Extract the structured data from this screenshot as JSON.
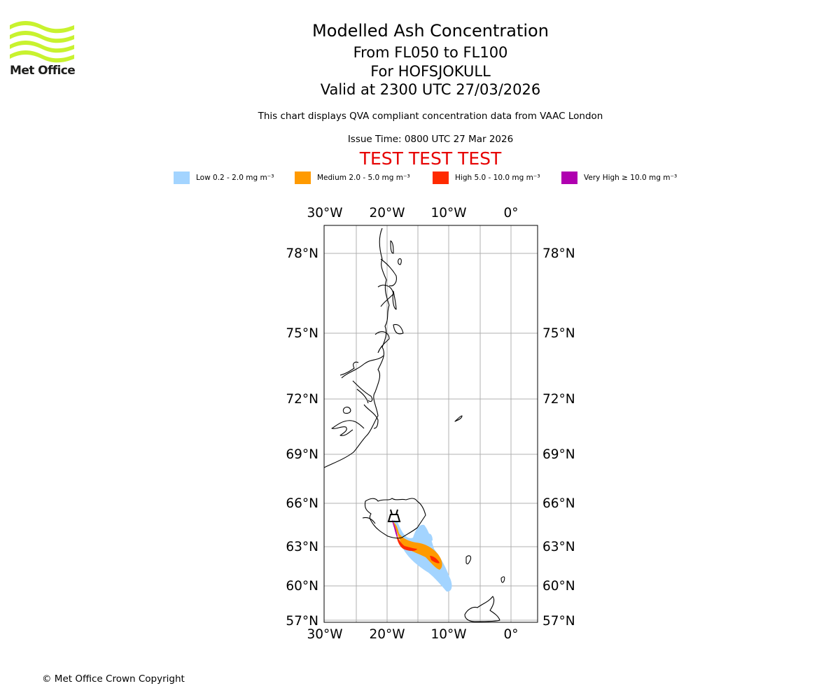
{
  "logo": {
    "text": "Met Office",
    "color": "#c8f22f"
  },
  "title": {
    "main": "Modelled Ash Concentration",
    "levels": "From FL050 to FL100",
    "volcano": "For HOFSJOKULL",
    "valid": "Valid at 2300 UTC 27/03/2026"
  },
  "description": "This chart displays QVA compliant concentration data from VAAC London",
  "issue_time": "Issue Time: 0800 UTC 27 Mar 2026",
  "test_banner": "TEST TEST TEST",
  "legend": [
    {
      "label": "Low 0.2 - 2.0 mg m⁻³",
      "color": "#a3d4ff"
    },
    {
      "label": "Medium 2.0 - 5.0 mg m⁻³",
      "color": "#ff9a00"
    },
    {
      "label": "High 5.0 - 10.0 mg m⁻³",
      "color": "#ff2a00"
    },
    {
      "label": "Very High ≥ 10.0 mg m⁻³",
      "color": "#b000b0"
    }
  ],
  "map": {
    "lon_labels": [
      "30°W",
      "20°W",
      "10°W",
      "0°"
    ],
    "lat_labels": [
      "78°N",
      "75°N",
      "72°N",
      "69°N",
      "66°N",
      "63°N",
      "60°N",
      "57°N"
    ]
  },
  "copyright": "© Met Office Crown Copyright"
}
